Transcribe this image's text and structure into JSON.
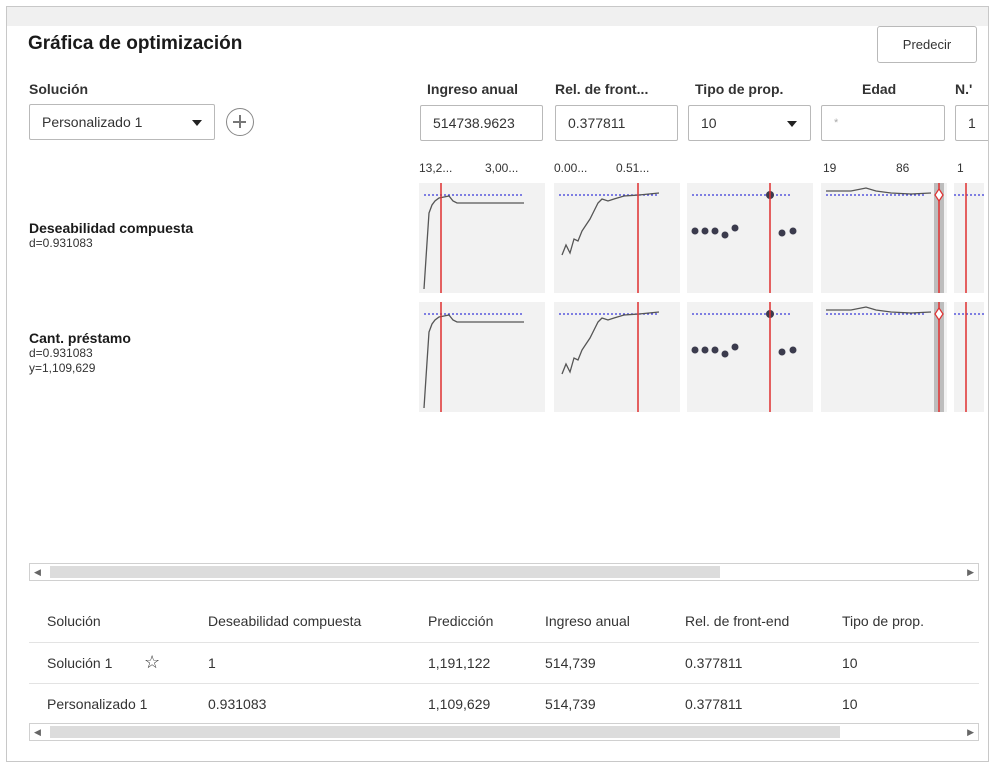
{
  "header": {
    "title": "Gráfica de optimización",
    "predict_label": "Predecir"
  },
  "solution": {
    "label": "Solución",
    "value": "Personalizado 1"
  },
  "columns": [
    {
      "label": "Ingreso anual",
      "value": "514738.9623",
      "tick_left": "13,2...",
      "tick_right": "3,00...",
      "kind": "text"
    },
    {
      "label": "Rel. de front...",
      "value": "0.377811",
      "tick_left": "0.00...",
      "tick_right": "0.51...",
      "kind": "text"
    },
    {
      "label": "Tipo de prop.",
      "value": "10",
      "kind": "dropdown"
    },
    {
      "label": "Edad",
      "placeholder": "*",
      "tick_left": "19",
      "tick_right": "86",
      "kind": "text"
    },
    {
      "label": "N.'",
      "value": "1",
      "tick_left": "1",
      "kind": "text"
    }
  ],
  "responses": [
    {
      "name": "Deseabilidad compuesta",
      "d": "d=0.931083"
    },
    {
      "name": "Cant. préstamo",
      "d": "d=0.931083",
      "y": "y=1,109,629"
    }
  ],
  "table": {
    "headers": [
      "Solución",
      "Deseabilidad compuesta",
      "Predicción",
      "Ingreso anual",
      "Rel. de front-end",
      "Tipo de prop."
    ],
    "rows": [
      {
        "solution": "Solución 1",
        "starred": true,
        "desirability": "1",
        "prediction": "1,191,122",
        "income": "514,739",
        "ratio": "0.377811",
        "prop_type": "10"
      },
      {
        "solution": "Personalizado 1",
        "starred": false,
        "desirability": "0.931083",
        "prediction": "1,109,629",
        "income": "514,739",
        "ratio": "0.377811",
        "prop_type": "10"
      }
    ]
  },
  "colors": {
    "reference_line": "#e03030",
    "target_line": "#3a3ad8",
    "panel_bg": "#f2f2f2",
    "curve": "#555555",
    "point": "#3b3b4d"
  }
}
